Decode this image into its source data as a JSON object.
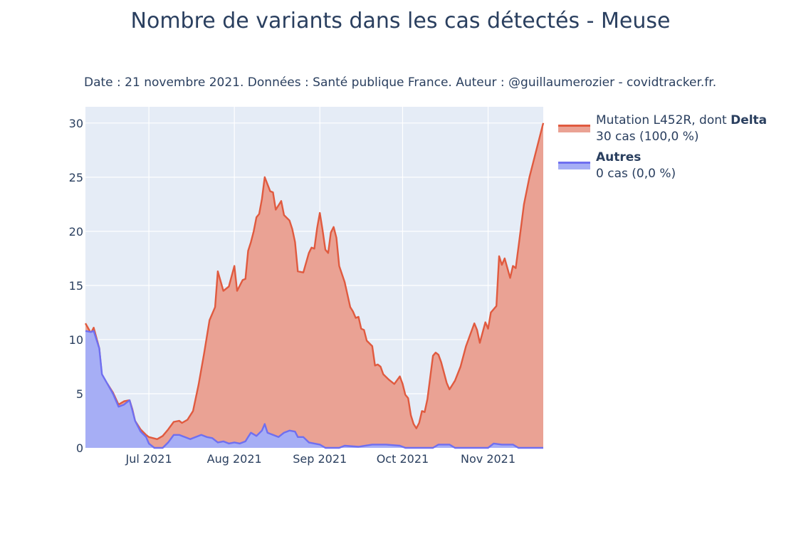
{
  "title": "Nombre de variants dans les cas détectés - Meuse",
  "subtitle": "Date : 21 novembre 2021. Données : Santé publique France. Auteur : @guillaumerozier - covidtracker.fr.",
  "colors": {
    "delta": "#e05a3f",
    "delta_fill": "#eaa294",
    "autres": "#6f6ff0",
    "autres_fill": "#a6aef5",
    "plot_bg": "#e5ecf6"
  },
  "legend": [
    {
      "prefix": "Mutation L452R, dont ",
      "bold": "Delta",
      "detail": "30 cas (100,0 %)"
    },
    {
      "prefix": "",
      "bold": "Autres",
      "detail": "0 cas (0,0 %)"
    }
  ],
  "chart_data": {
    "type": "area",
    "x_start": "2021-06-08",
    "x_end": "2021-11-21",
    "x_ticks": [
      "Jul 2021",
      "Aug 2021",
      "Sep 2021",
      "Oct 2021",
      "Nov 2021"
    ],
    "y_ticks": [
      0,
      5,
      10,
      15,
      20,
      25,
      30
    ],
    "ylim": [
      0,
      31.5
    ],
    "grid": true,
    "legend_position": "right",
    "series": [
      {
        "name": "Mutation L452R, dont Delta",
        "points": [
          [
            "2021-06-08",
            11.5
          ],
          [
            "2021-06-10",
            10.6
          ],
          [
            "2021-06-11",
            11.1
          ],
          [
            "2021-06-13",
            9.2
          ],
          [
            "2021-06-14",
            6.6
          ],
          [
            "2021-06-16",
            5.9
          ],
          [
            "2021-06-18",
            5.1
          ],
          [
            "2021-06-20",
            4.0
          ],
          [
            "2021-06-22",
            4.3
          ],
          [
            "2021-06-24",
            4.4
          ],
          [
            "2021-06-25",
            3.6
          ],
          [
            "2021-06-26",
            2.5
          ],
          [
            "2021-06-28",
            1.7
          ],
          [
            "2021-06-30",
            1.2
          ],
          [
            "2021-07-01",
            1.0
          ],
          [
            "2021-07-04",
            0.8
          ],
          [
            "2021-07-06",
            1.1
          ],
          [
            "2021-07-08",
            1.7
          ],
          [
            "2021-07-10",
            2.4
          ],
          [
            "2021-07-12",
            2.5
          ],
          [
            "2021-07-13",
            2.3
          ],
          [
            "2021-07-15",
            2.6
          ],
          [
            "2021-07-17",
            3.4
          ],
          [
            "2021-07-19",
            5.8
          ],
          [
            "2021-07-21",
            8.7
          ],
          [
            "2021-07-23",
            11.8
          ],
          [
            "2021-07-25",
            13.0
          ],
          [
            "2021-07-26",
            16.3
          ],
          [
            "2021-07-28",
            14.5
          ],
          [
            "2021-07-30",
            14.9
          ],
          [
            "2021-08-01",
            16.8
          ],
          [
            "2021-08-02",
            14.5
          ],
          [
            "2021-08-04",
            15.5
          ],
          [
            "2021-08-05",
            15.6
          ],
          [
            "2021-08-06",
            18.2
          ],
          [
            "2021-08-07",
            19.0
          ],
          [
            "2021-08-08",
            20.0
          ],
          [
            "2021-08-09",
            21.3
          ],
          [
            "2021-08-10",
            21.6
          ],
          [
            "2021-08-11",
            23.0
          ],
          [
            "2021-08-12",
            25.0
          ],
          [
            "2021-08-14",
            23.7
          ],
          [
            "2021-08-15",
            23.6
          ],
          [
            "2021-08-16",
            22.0
          ],
          [
            "2021-08-18",
            22.8
          ],
          [
            "2021-08-19",
            21.5
          ],
          [
            "2021-08-21",
            21.0
          ],
          [
            "2021-08-22",
            20.2
          ],
          [
            "2021-08-23",
            19.0
          ],
          [
            "2021-08-24",
            16.3
          ],
          [
            "2021-08-26",
            16.2
          ],
          [
            "2021-08-28",
            18.0
          ],
          [
            "2021-08-29",
            18.5
          ],
          [
            "2021-08-30",
            18.4
          ],
          [
            "2021-08-31",
            20.3
          ],
          [
            "2021-09-01",
            21.7
          ],
          [
            "2021-09-02",
            20.1
          ],
          [
            "2021-09-03",
            18.3
          ],
          [
            "2021-09-04",
            18.0
          ],
          [
            "2021-09-05",
            19.9
          ],
          [
            "2021-09-06",
            20.4
          ],
          [
            "2021-09-07",
            19.4
          ],
          [
            "2021-09-08",
            16.8
          ],
          [
            "2021-09-10",
            15.3
          ],
          [
            "2021-09-12",
            13.0
          ],
          [
            "2021-09-13",
            12.6
          ],
          [
            "2021-09-14",
            12.0
          ],
          [
            "2021-09-15",
            12.1
          ],
          [
            "2021-09-16",
            11.0
          ],
          [
            "2021-09-17",
            10.9
          ],
          [
            "2021-09-18",
            9.9
          ],
          [
            "2021-09-20",
            9.4
          ],
          [
            "2021-09-21",
            7.6
          ],
          [
            "2021-09-22",
            7.7
          ],
          [
            "2021-09-23",
            7.5
          ],
          [
            "2021-09-24",
            6.8
          ],
          [
            "2021-09-26",
            6.3
          ],
          [
            "2021-09-28",
            5.9
          ],
          [
            "2021-09-30",
            6.6
          ],
          [
            "2021-10-01",
            5.9
          ],
          [
            "2021-10-02",
            4.9
          ],
          [
            "2021-10-03",
            4.6
          ],
          [
            "2021-10-04",
            3.0
          ],
          [
            "2021-10-05",
            2.2
          ],
          [
            "2021-10-06",
            1.8
          ],
          [
            "2021-10-07",
            2.3
          ],
          [
            "2021-10-08",
            3.4
          ],
          [
            "2021-10-09",
            3.3
          ],
          [
            "2021-10-10",
            4.5
          ],
          [
            "2021-10-12",
            8.5
          ],
          [
            "2021-10-13",
            8.8
          ],
          [
            "2021-10-14",
            8.6
          ],
          [
            "2021-10-15",
            7.9
          ],
          [
            "2021-10-17",
            6.0
          ],
          [
            "2021-10-18",
            5.4
          ],
          [
            "2021-10-20",
            6.2
          ],
          [
            "2021-10-22",
            7.5
          ],
          [
            "2021-10-24",
            9.4
          ],
          [
            "2021-10-27",
            11.5
          ],
          [
            "2021-10-28",
            10.9
          ],
          [
            "2021-10-29",
            9.7
          ],
          [
            "2021-10-31",
            11.6
          ],
          [
            "2021-11-01",
            11.0
          ],
          [
            "2021-11-02",
            12.5
          ],
          [
            "2021-11-04",
            13.1
          ],
          [
            "2021-11-05",
            17.7
          ],
          [
            "2021-11-06",
            16.9
          ],
          [
            "2021-11-07",
            17.5
          ],
          [
            "2021-11-09",
            15.7
          ],
          [
            "2021-11-10",
            16.8
          ],
          [
            "2021-11-11",
            16.6
          ],
          [
            "2021-11-12",
            18.5
          ],
          [
            "2021-11-14",
            22.5
          ],
          [
            "2021-11-16",
            25.0
          ],
          [
            "2021-11-21",
            30.0
          ]
        ]
      },
      {
        "name": "Autres",
        "points": [
          [
            "2021-06-08",
            10.8
          ],
          [
            "2021-06-10",
            10.7
          ],
          [
            "2021-06-11",
            10.8
          ],
          [
            "2021-06-13",
            9.2
          ],
          [
            "2021-06-14",
            6.8
          ],
          [
            "2021-06-16",
            5.9
          ],
          [
            "2021-06-18",
            5.0
          ],
          [
            "2021-06-20",
            3.8
          ],
          [
            "2021-06-22",
            4.0
          ],
          [
            "2021-06-24",
            4.4
          ],
          [
            "2021-06-25",
            3.5
          ],
          [
            "2021-06-26",
            2.5
          ],
          [
            "2021-06-28",
            1.5
          ],
          [
            "2021-06-30",
            1.0
          ],
          [
            "2021-07-01",
            0.4
          ],
          [
            "2021-07-03",
            0.0
          ],
          [
            "2021-07-06",
            0.0
          ],
          [
            "2021-07-08",
            0.5
          ],
          [
            "2021-07-10",
            1.2
          ],
          [
            "2021-07-12",
            1.2
          ],
          [
            "2021-07-14",
            1.0
          ],
          [
            "2021-07-16",
            0.8
          ],
          [
            "2021-07-18",
            1.0
          ],
          [
            "2021-07-20",
            1.2
          ],
          [
            "2021-07-22",
            1.0
          ],
          [
            "2021-07-24",
            0.9
          ],
          [
            "2021-07-26",
            0.5
          ],
          [
            "2021-07-28",
            0.6
          ],
          [
            "2021-07-30",
            0.4
          ],
          [
            "2021-08-01",
            0.5
          ],
          [
            "2021-08-03",
            0.4
          ],
          [
            "2021-08-05",
            0.6
          ],
          [
            "2021-08-06",
            1.0
          ],
          [
            "2021-08-07",
            1.4
          ],
          [
            "2021-08-09",
            1.1
          ],
          [
            "2021-08-11",
            1.6
          ],
          [
            "2021-08-12",
            2.2
          ],
          [
            "2021-08-13",
            1.4
          ],
          [
            "2021-08-15",
            1.2
          ],
          [
            "2021-08-17",
            1.0
          ],
          [
            "2021-08-19",
            1.4
          ],
          [
            "2021-08-21",
            1.6
          ],
          [
            "2021-08-23",
            1.5
          ],
          [
            "2021-08-24",
            1.0
          ],
          [
            "2021-08-26",
            1.0
          ],
          [
            "2021-08-28",
            0.5
          ],
          [
            "2021-09-01",
            0.3
          ],
          [
            "2021-09-03",
            0.0
          ],
          [
            "2021-09-08",
            0.0
          ],
          [
            "2021-09-10",
            0.2
          ],
          [
            "2021-09-15",
            0.1
          ],
          [
            "2021-09-20",
            0.3
          ],
          [
            "2021-09-25",
            0.3
          ],
          [
            "2021-09-30",
            0.2
          ],
          [
            "2021-10-02",
            0.0
          ],
          [
            "2021-10-12",
            0.0
          ],
          [
            "2021-10-14",
            0.3
          ],
          [
            "2021-10-18",
            0.3
          ],
          [
            "2021-10-20",
            0.0
          ],
          [
            "2021-11-01",
            0.0
          ],
          [
            "2021-11-03",
            0.4
          ],
          [
            "2021-11-06",
            0.3
          ],
          [
            "2021-11-10",
            0.3
          ],
          [
            "2021-11-12",
            0.0
          ],
          [
            "2021-11-21",
            0.0
          ]
        ]
      }
    ]
  }
}
